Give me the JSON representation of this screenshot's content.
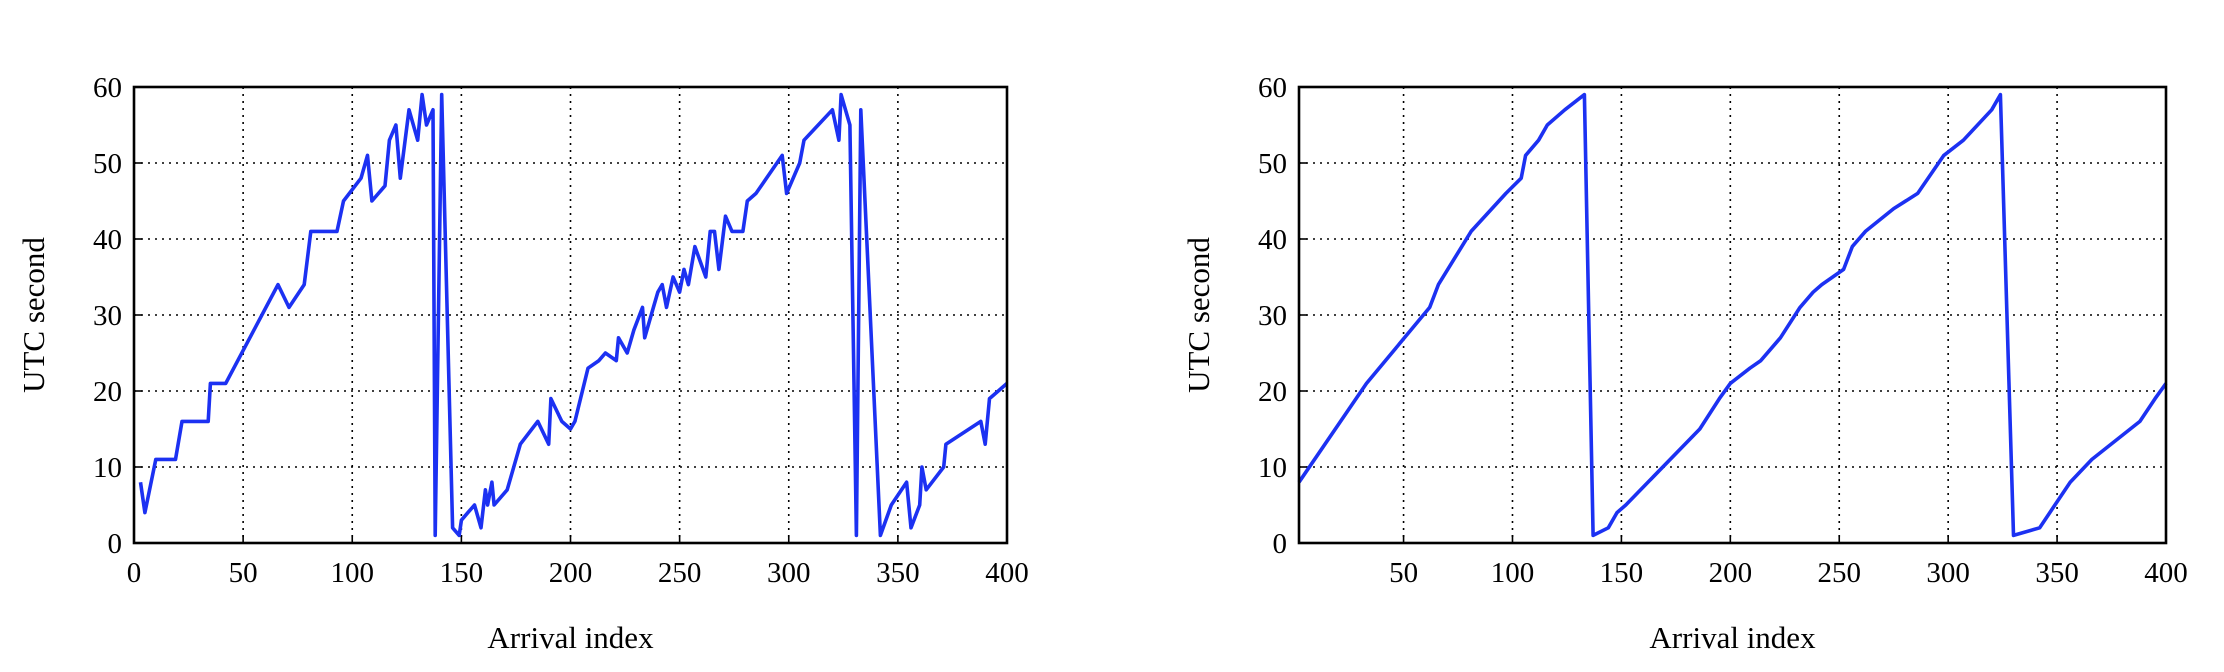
{
  "chart_data": [
    {
      "type": "line",
      "xlabel": "Arrival index",
      "ylabel": "UTC second",
      "grid": true,
      "xlim": [
        0,
        400
      ],
      "ylim": [
        0,
        60
      ],
      "xticks": [
        0,
        50,
        100,
        150,
        200,
        250,
        300,
        350,
        400
      ],
      "yticks": [
        0,
        10,
        20,
        30,
        40,
        50,
        60
      ],
      "color": "#1c31f2",
      "x": [
        3,
        5,
        10,
        19,
        22,
        34,
        35,
        42,
        66,
        71,
        78,
        81,
        93,
        96,
        104,
        107,
        109,
        115,
        117,
        120,
        122,
        126,
        130,
        132,
        134,
        137,
        138,
        141,
        146,
        149,
        150,
        153,
        156,
        159,
        161,
        162,
        164,
        165,
        171,
        177,
        185,
        190,
        191,
        196,
        200,
        202,
        208,
        213,
        216,
        221,
        222,
        226,
        229,
        233,
        234,
        238,
        240,
        242,
        244,
        247,
        250,
        252,
        254,
        257,
        262,
        264,
        266,
        268,
        271,
        274,
        279,
        281,
        285,
        297,
        299,
        305,
        307,
        320,
        323,
        324,
        328,
        331,
        333,
        342,
        347,
        354,
        356,
        360,
        361,
        363,
        371,
        372,
        388,
        390,
        392,
        400
      ],
      "values": [
        8,
        4,
        11,
        11,
        16,
        16,
        21,
        21,
        34,
        31,
        34,
        41,
        41,
        45,
        48,
        51,
        45,
        47,
        53,
        55,
        48,
        57,
        53,
        59,
        55,
        57,
        1,
        59,
        2,
        1,
        3,
        4,
        5,
        2,
        7,
        5,
        8,
        5,
        7,
        13,
        16,
        13,
        19,
        16,
        15,
        16,
        23,
        24,
        25,
        24,
        27,
        25,
        28,
        31,
        27,
        31,
        33,
        34,
        31,
        35,
        33,
        36,
        34,
        39,
        35,
        41,
        41,
        36,
        43,
        41,
        41,
        45,
        46,
        51,
        46,
        50,
        53,
        57,
        53,
        59,
        55,
        1,
        57,
        1,
        5,
        8,
        2,
        5,
        10,
        7,
        10,
        13,
        16,
        13,
        19,
        21
      ]
    },
    {
      "type": "line",
      "xlabel": "Arrival index",
      "ylabel": "UTC second",
      "grid": true,
      "xlim": [
        2,
        400
      ],
      "ylim": [
        0,
        60
      ],
      "xticks": [
        50,
        100,
        150,
        200,
        250,
        300,
        350,
        400
      ],
      "yticks": [
        0,
        10,
        20,
        30,
        40,
        50,
        60
      ],
      "color": "#1c31f2",
      "x": [
        2,
        33,
        62,
        66,
        81,
        97,
        104,
        106,
        112,
        116,
        124,
        133,
        137,
        144,
        148,
        152,
        186,
        195,
        200,
        209,
        214,
        223,
        232,
        238,
        242,
        247,
        252,
        256,
        262,
        275,
        286,
        298,
        307,
        320,
        324,
        330,
        342,
        349,
        356,
        366,
        388,
        395,
        400
      ],
      "values": [
        8,
        21,
        31,
        34,
        41,
        46,
        48,
        51,
        53,
        55,
        57,
        59,
        1,
        2,
        4,
        5,
        15,
        19,
        21,
        23,
        24,
        27,
        31,
        33,
        34,
        35,
        36,
        39,
        41,
        44,
        46,
        51,
        53,
        57,
        59,
        1,
        2,
        5,
        8,
        11,
        16,
        19,
        21
      ]
    }
  ]
}
